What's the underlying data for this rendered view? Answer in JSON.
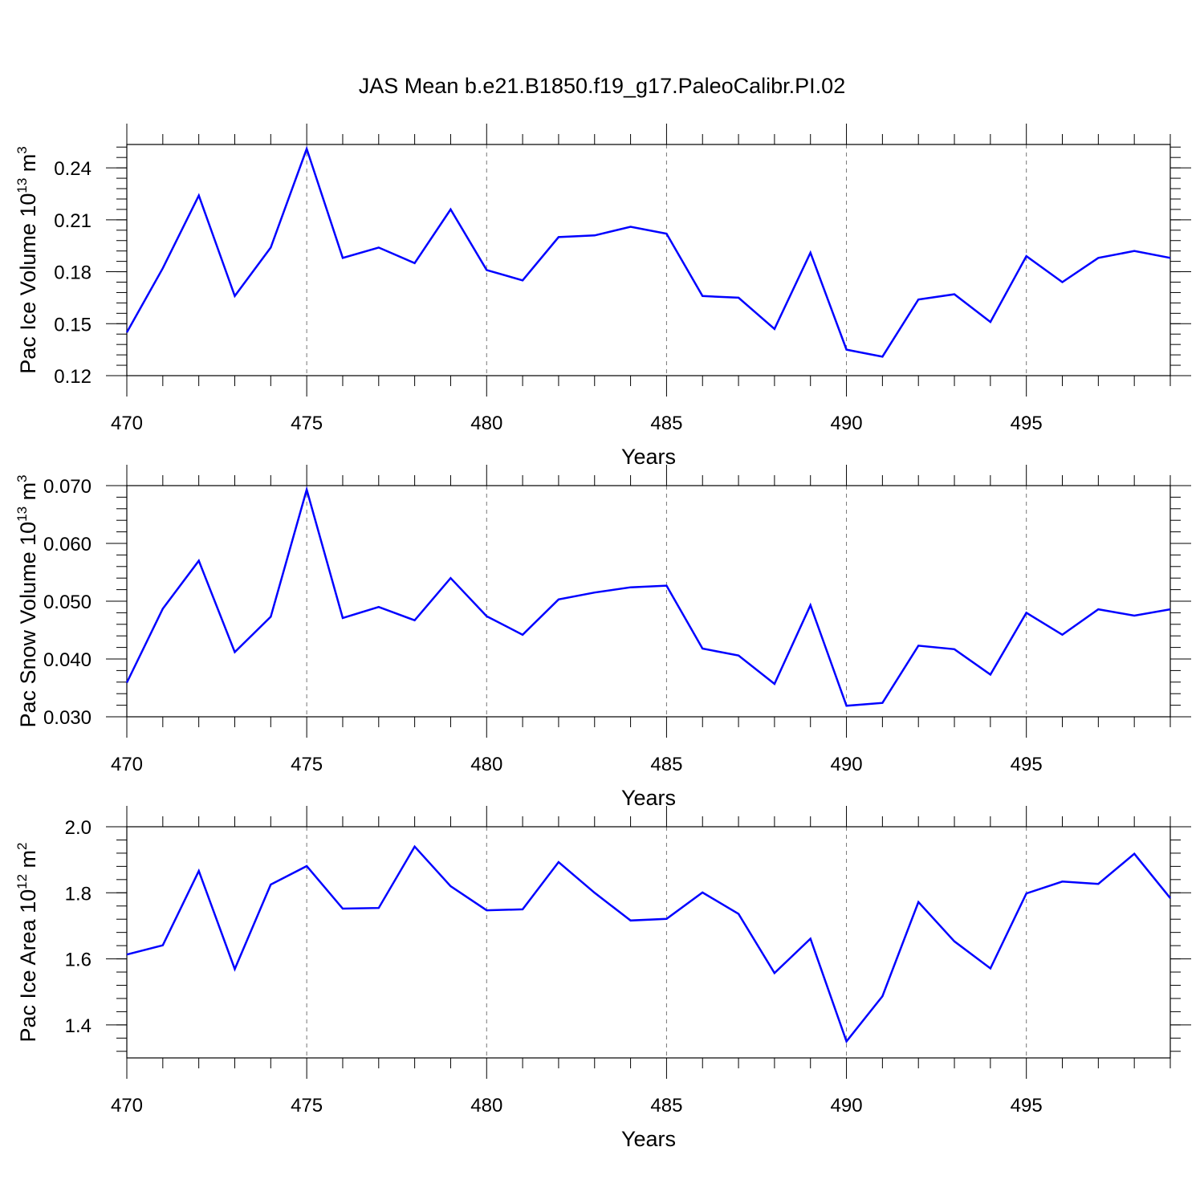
{
  "title": "JAS Mean b.e21.B1850.f19_g17.PaleoCalibr.PI.02",
  "colors": {
    "series": "#0000ff",
    "frame": "#000000",
    "grid": "#777777"
  },
  "chart_data": [
    {
      "type": "line",
      "ylabel": {
        "text": "Pac Ice Volume 10",
        "sup": "13",
        "unit": " m",
        "unit_sup": "3"
      },
      "xlabel": "Years",
      "xlim": [
        470,
        499
      ],
      "ylim": [
        0.12,
        0.2535
      ],
      "xticks": [
        470,
        475,
        480,
        485,
        490,
        495
      ],
      "xtick_labels": [
        "470",
        "475",
        "480",
        "485",
        "490",
        "495"
      ],
      "yticks": [
        0.12,
        0.15,
        0.18,
        0.21,
        0.24
      ],
      "ytick_labels": [
        "0.12",
        "0.15",
        "0.18",
        "0.21",
        "0.24"
      ],
      "grid": "vertical dashed at major x ticks",
      "x": [
        470,
        471,
        472,
        473,
        474,
        475,
        476,
        477,
        478,
        479,
        480,
        481,
        482,
        483,
        484,
        485,
        486,
        487,
        488,
        489,
        490,
        491,
        492,
        493,
        494,
        495,
        496,
        497,
        498,
        499
      ],
      "values": [
        0.145,
        0.182,
        0.224,
        0.166,
        0.194,
        0.251,
        0.188,
        0.194,
        0.185,
        0.216,
        0.181,
        0.175,
        0.2,
        0.201,
        0.206,
        0.202,
        0.166,
        0.165,
        0.147,
        0.191,
        0.135,
        0.131,
        0.164,
        0.167,
        0.151,
        0.189,
        0.174,
        0.188,
        0.192,
        0.188
      ]
    },
    {
      "type": "line",
      "ylabel": {
        "text": "Pac Snow Volume 10",
        "sup": "13",
        "unit": " m",
        "unit_sup": "3"
      },
      "xlabel": "Years",
      "xlim": [
        470,
        499
      ],
      "ylim": [
        0.03,
        0.07
      ],
      "xticks": [
        470,
        475,
        480,
        485,
        490,
        495
      ],
      "xtick_labels": [
        "470",
        "475",
        "480",
        "485",
        "490",
        "495"
      ],
      "yticks": [
        0.03,
        0.04,
        0.05,
        0.06,
        0.07
      ],
      "ytick_labels": [
        "0.030",
        "0.040",
        "0.050",
        "0.060",
        "0.070"
      ],
      "grid": "vertical dashed at major x ticks",
      "x": [
        470,
        471,
        472,
        473,
        474,
        475,
        476,
        477,
        478,
        479,
        480,
        481,
        482,
        483,
        484,
        485,
        486,
        487,
        488,
        489,
        490,
        491,
        492,
        493,
        494,
        495,
        496,
        497,
        498,
        499
      ],
      "values": [
        0.0359,
        0.0487,
        0.057,
        0.0412,
        0.0473,
        0.0693,
        0.0471,
        0.049,
        0.0467,
        0.054,
        0.0474,
        0.0442,
        0.0503,
        0.0515,
        0.0524,
        0.0527,
        0.0418,
        0.0406,
        0.0357,
        0.0493,
        0.0319,
        0.0324,
        0.0423,
        0.0417,
        0.0373,
        0.048,
        0.0442,
        0.0486,
        0.0475,
        0.0486
      ]
    },
    {
      "type": "line",
      "ylabel": {
        "text": "Pac Ice Area 10",
        "sup": "12",
        "unit": " m",
        "unit_sup": "2"
      },
      "xlabel": "Years",
      "xlim": [
        470,
        499
      ],
      "ylim": [
        1.3,
        2.0
      ],
      "xticks": [
        470,
        475,
        480,
        485,
        490,
        495
      ],
      "xtick_labels": [
        "470",
        "475",
        "480",
        "485",
        "490",
        "495"
      ],
      "yticks": [
        1.4,
        1.6,
        1.8,
        2.0
      ],
      "ytick_labels": [
        "1.4",
        "1.6",
        "1.8",
        "2.0"
      ],
      "grid": "vertical dashed at major x ticks",
      "x": [
        470,
        471,
        472,
        473,
        474,
        475,
        476,
        477,
        478,
        479,
        480,
        481,
        482,
        483,
        484,
        485,
        486,
        487,
        488,
        489,
        490,
        491,
        492,
        493,
        494,
        495,
        496,
        497,
        498,
        499
      ],
      "values": [
        1.613,
        1.641,
        1.866,
        1.569,
        1.825,
        1.881,
        1.752,
        1.754,
        1.94,
        1.82,
        1.747,
        1.75,
        1.893,
        1.8,
        1.716,
        1.721,
        1.801,
        1.736,
        1.557,
        1.661,
        1.35,
        1.487,
        1.772,
        1.653,
        1.571,
        1.798,
        1.834,
        1.827,
        1.918,
        1.784
      ]
    }
  ]
}
